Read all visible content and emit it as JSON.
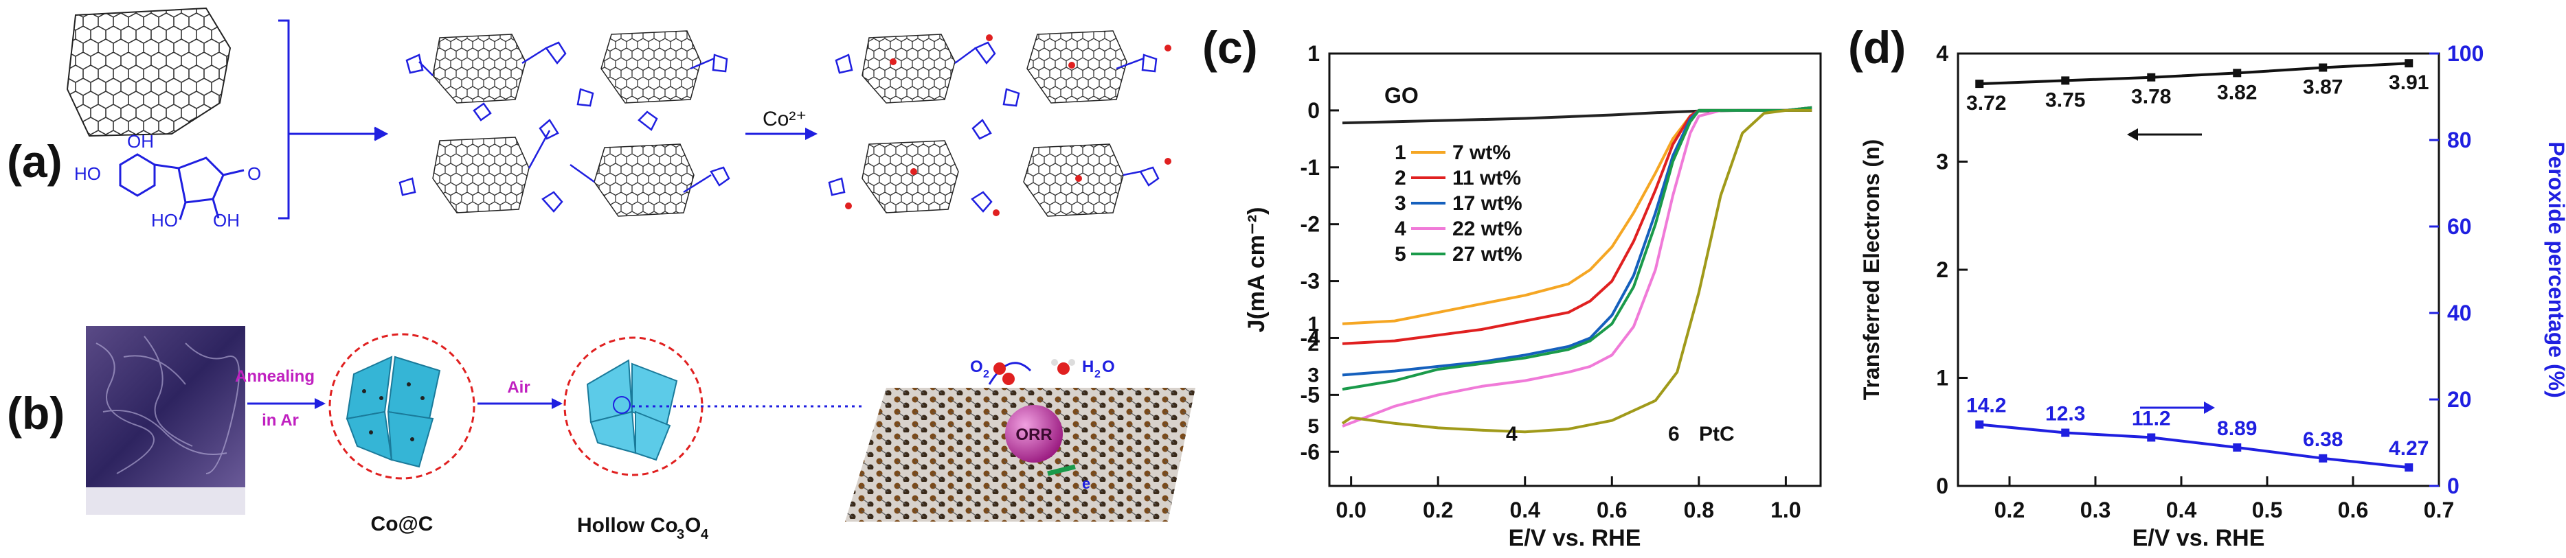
{
  "panels": {
    "a": {
      "label": "(a)",
      "arrow_label": "Co²⁺"
    },
    "b": {
      "label": "(b)",
      "arrow1_label_line1": "Annealing",
      "arrow1_label_line2": "in Ar",
      "arrow2_label": "Air",
      "caption1": "Co@C",
      "caption2_main": "Hollow Co",
      "caption2_sub1": "3",
      "caption2_mid": "O",
      "caption2_sub2": "4",
      "orr_label": "ORR",
      "o2_label": "O",
      "o2_sub": "2",
      "h2o_label": "H",
      "h2o_sub": "2",
      "h2o_tail": "O",
      "e_label": "e"
    }
  },
  "colors": {
    "blue_arrow": "#1f1fe0",
    "magenta_text": "#c020c0",
    "red_dash": "#e02020",
    "cyan_sheet": "#35b5d6",
    "orr_sphere": "#b02090"
  },
  "chart_data": [
    {
      "panel": "(c)",
      "type": "line",
      "title": "",
      "xlabel": "E/V vs. RHE",
      "ylabel": "J(mA cm⁻²)",
      "xlim": [
        -0.05,
        1.08
      ],
      "ylim": [
        -6.6,
        1.0
      ],
      "xticks": [
        "0.0",
        "0.2",
        "0.4",
        "0.6",
        "0.8",
        "1.0"
      ],
      "xtick_values": [
        0.0,
        0.2,
        0.4,
        0.6,
        0.8,
        1.0
      ],
      "yticks": [
        "1",
        "0",
        "-1",
        "-2",
        "-3",
        "-4",
        "-5",
        "-6"
      ],
      "ytick_values": [
        1,
        0,
        -1,
        -2,
        -3,
        -4,
        -5,
        -6
      ],
      "series": [
        {
          "name": "GO",
          "color": "#222222",
          "x": [
            -0.02,
            0.2,
            0.4,
            0.6,
            0.7,
            0.8,
            0.9,
            1.0,
            1.06
          ],
          "y": [
            -0.22,
            -0.18,
            -0.14,
            -0.08,
            -0.04,
            -0.01,
            0.0,
            0.0,
            0.0
          ]
        },
        {
          "name": "7 wt%",
          "color": "#f5a623",
          "x": [
            -0.02,
            0.1,
            0.2,
            0.3,
            0.4,
            0.5,
            0.55,
            0.6,
            0.65,
            0.7,
            0.74,
            0.78,
            0.8,
            0.85,
            0.9,
            1.0,
            1.06
          ],
          "y": [
            -3.75,
            -3.7,
            -3.55,
            -3.4,
            -3.25,
            -3.05,
            -2.8,
            -2.4,
            -1.8,
            -1.1,
            -0.5,
            -0.1,
            0.0,
            0.0,
            0.0,
            0.0,
            0.05
          ]
        },
        {
          "name": "11 wt%",
          "color": "#e02020",
          "x": [
            -0.02,
            0.1,
            0.2,
            0.3,
            0.4,
            0.5,
            0.55,
            0.6,
            0.65,
            0.7,
            0.74,
            0.78,
            0.8,
            0.85,
            0.9,
            1.0,
            1.06
          ],
          "y": [
            -4.1,
            -4.05,
            -3.95,
            -3.85,
            -3.7,
            -3.55,
            -3.35,
            -3.0,
            -2.3,
            -1.4,
            -0.6,
            -0.1,
            0.0,
            0.0,
            0.0,
            0.0,
            0.05
          ]
        },
        {
          "name": "17 wt%",
          "color": "#1560bd",
          "x": [
            -0.02,
            0.1,
            0.2,
            0.3,
            0.4,
            0.5,
            0.55,
            0.6,
            0.65,
            0.7,
            0.74,
            0.78,
            0.8,
            0.85,
            0.9,
            1.0,
            1.06
          ],
          "y": [
            -4.65,
            -4.58,
            -4.5,
            -4.42,
            -4.3,
            -4.15,
            -4.0,
            -3.6,
            -2.9,
            -1.8,
            -0.8,
            -0.15,
            0.0,
            0.0,
            0.0,
            0.0,
            0.05
          ]
        },
        {
          "name": "22 wt%",
          "color": "#f07ad8",
          "x": [
            -0.02,
            0.1,
            0.2,
            0.3,
            0.4,
            0.5,
            0.55,
            0.6,
            0.65,
            0.7,
            0.74,
            0.78,
            0.8,
            0.85,
            0.9,
            1.0,
            1.06
          ],
          "y": [
            -5.55,
            -5.2,
            -5.0,
            -4.85,
            -4.75,
            -4.6,
            -4.5,
            -4.3,
            -3.8,
            -2.8,
            -1.5,
            -0.4,
            -0.1,
            0.0,
            0.0,
            0.0,
            0.05
          ]
        },
        {
          "name": "27 wt%",
          "color": "#1a9a4a",
          "x": [
            -0.02,
            0.1,
            0.2,
            0.3,
            0.4,
            0.5,
            0.55,
            0.6,
            0.65,
            0.7,
            0.74,
            0.78,
            0.8,
            0.85,
            0.9,
            1.0,
            1.06
          ],
          "y": [
            -4.9,
            -4.75,
            -4.55,
            -4.45,
            -4.35,
            -4.2,
            -4.05,
            -3.75,
            -3.1,
            -2.0,
            -0.9,
            -0.2,
            0.0,
            0.0,
            0.0,
            0.0,
            0.05
          ]
        },
        {
          "name": "PtC",
          "color": "#a09a1a",
          "x": [
            -0.02,
            0.0,
            0.1,
            0.2,
            0.3,
            0.4,
            0.5,
            0.6,
            0.7,
            0.75,
            0.8,
            0.85,
            0.9,
            0.95,
            1.0,
            1.06
          ],
          "y": [
            -5.5,
            -5.4,
            -5.5,
            -5.58,
            -5.62,
            -5.65,
            -5.6,
            -5.45,
            -5.1,
            -4.6,
            -3.2,
            -1.5,
            -0.4,
            -0.05,
            0.0,
            0.0
          ]
        }
      ],
      "legend": [
        {
          "num": "1",
          "text": "7 wt%"
        },
        {
          "num": "2",
          "text": "11 wt%"
        },
        {
          "num": "3",
          "text": "17 wt%"
        },
        {
          "num": "4",
          "text": "22 wt%"
        },
        {
          "num": "5",
          "text": "27 wt%"
        }
      ],
      "annotations": {
        "go": "GO",
        "curve_nums": [
          "1",
          "2",
          "3",
          "5"
        ],
        "curve4": "4",
        "curve6": "6",
        "ptc": "PtC"
      }
    },
    {
      "panel": "(d)",
      "type": "line",
      "xlabel": "E/V vs. RHE",
      "ylabel_left": "Transferred Electrons (n)",
      "ylabel_right": "Peroxide percentage (%)",
      "xlim": [
        0.14,
        0.7
      ],
      "ylim_left": [
        0,
        4
      ],
      "ylim_right": [
        0,
        100
      ],
      "xticks": [
        "0.2",
        "0.3",
        "0.4",
        "0.5",
        "0.6",
        "0.7"
      ],
      "xtick_values": [
        0.2,
        0.3,
        0.4,
        0.5,
        0.6,
        0.7
      ],
      "yticks_left": [
        "0",
        "1",
        "2",
        "3",
        "4"
      ],
      "ytick_values_left": [
        0,
        1,
        2,
        3,
        4
      ],
      "yticks_right": [
        "0",
        "20",
        "40",
        "60",
        "80",
        "100"
      ],
      "ytick_values_right": [
        0,
        20,
        40,
        60,
        80,
        100
      ],
      "series": [
        {
          "name": "Transferred Electrons",
          "axis": "left",
          "color": "#111111",
          "x": [
            0.165,
            0.265,
            0.365,
            0.465,
            0.565,
            0.665
          ],
          "y": [
            3.72,
            3.75,
            3.78,
            3.82,
            3.87,
            3.91
          ],
          "labels": [
            "3.72",
            "3.75",
            "3.78",
            "3.82",
            "3.87",
            "3.91"
          ]
        },
        {
          "name": "Peroxide percentage",
          "axis": "right",
          "color": "#1f1fe0",
          "x": [
            0.165,
            0.265,
            0.365,
            0.465,
            0.565,
            0.665
          ],
          "y": [
            14.2,
            12.3,
            11.2,
            8.89,
            6.38,
            4.27
          ],
          "labels": [
            "14.2",
            "12.3",
            "11.2",
            "8.89",
            "6.38",
            "4.27"
          ]
        }
      ]
    }
  ]
}
